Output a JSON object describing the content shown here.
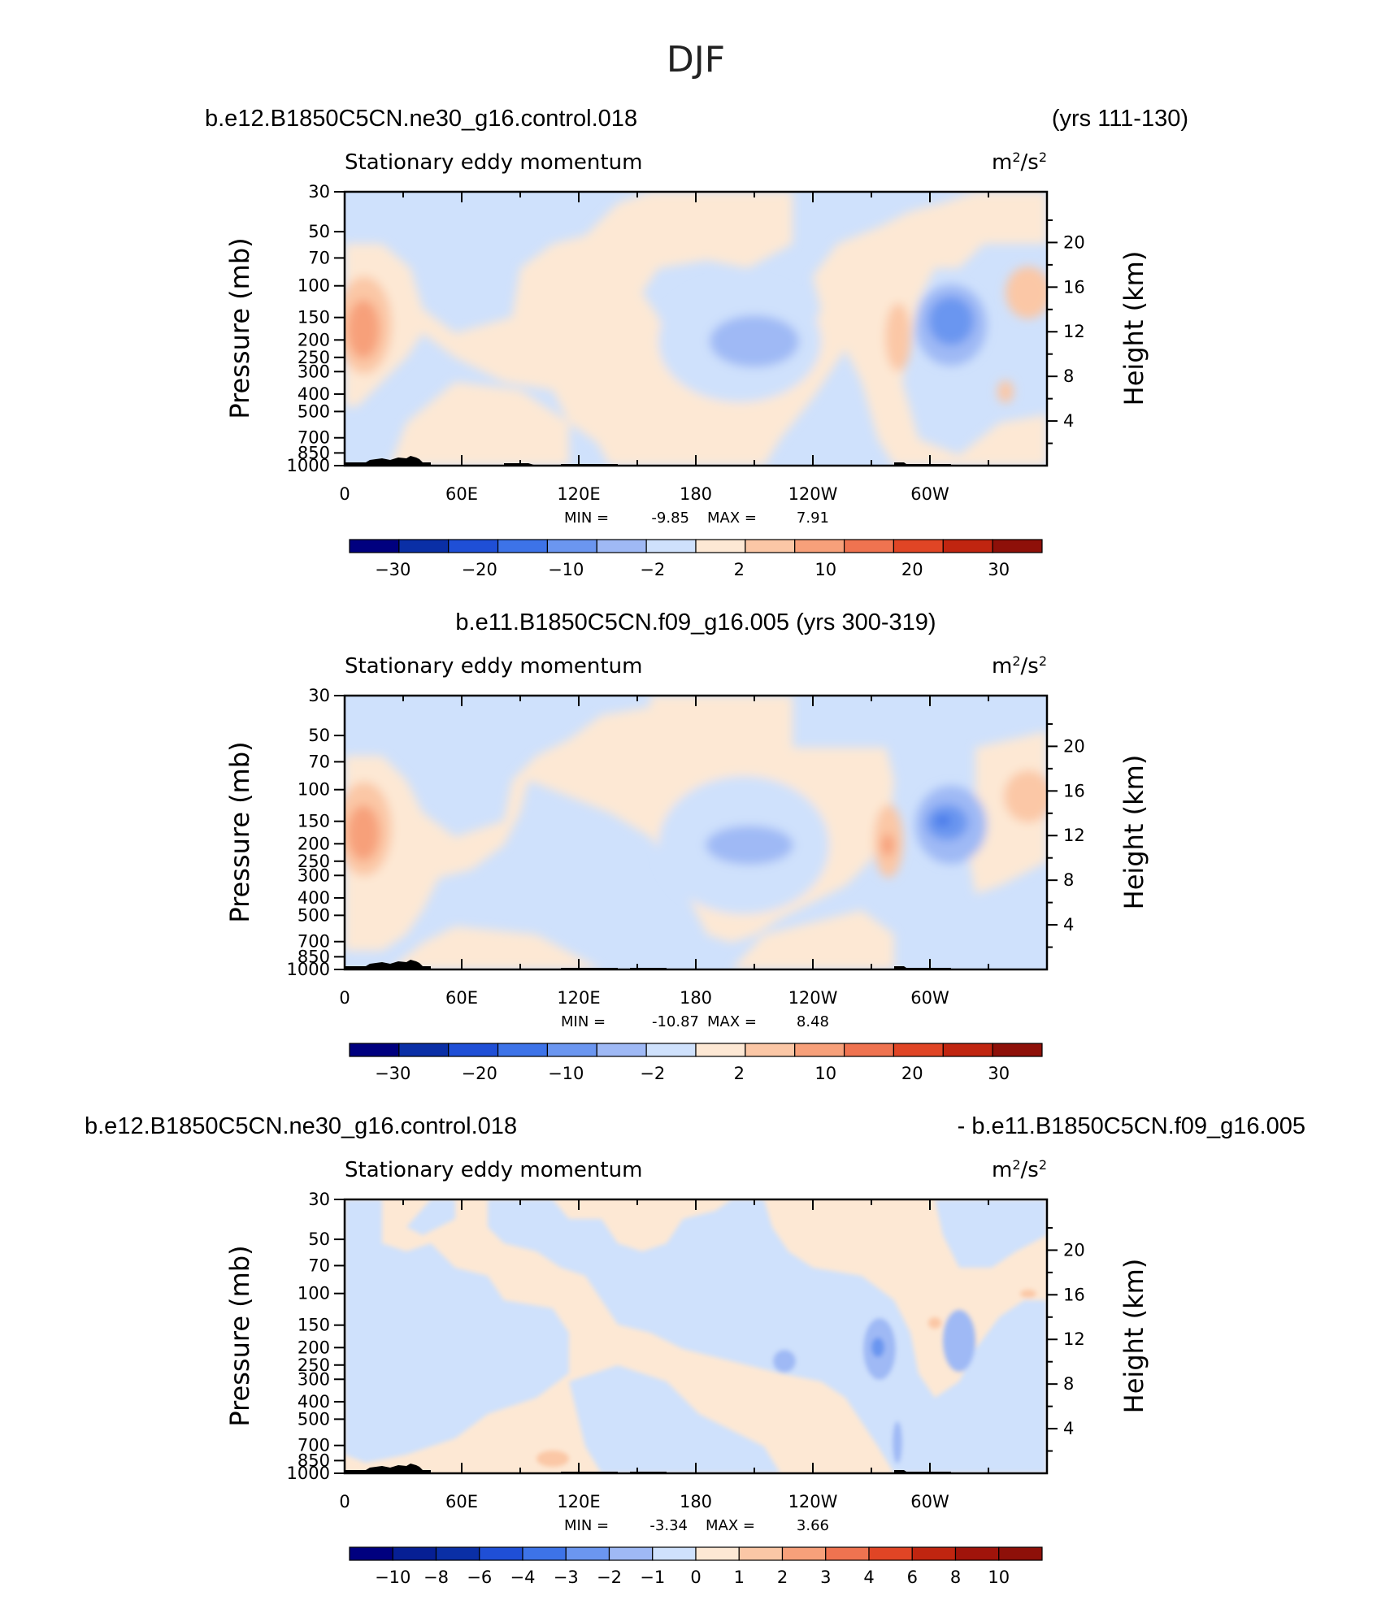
{
  "figure": {
    "title": "DJF"
  },
  "colors": {
    "absolute_scale": [
      "#00007f",
      "#0a2fa6",
      "#1f4fd6",
      "#3d73e8",
      "#6b96f0",
      "#9fb9f5",
      "#cfe1fc",
      "#fde8d4",
      "#fbc7a6",
      "#f7a07a",
      "#ef7350",
      "#e04525",
      "#c02510",
      "#8e1009"
    ],
    "difference_scale": [
      "#00007f",
      "#0a2fa6",
      "#1f4fd6",
      "#3d73e8",
      "#6b96f0",
      "#9fb9f5",
      "#cfe1fc",
      "#fde8d4",
      "#fbc7a6",
      "#f7a07a",
      "#ef7350",
      "#e04525",
      "#c02510",
      "#8e1009"
    ]
  },
  "chart_data": [
    {
      "type": "heatmap",
      "header_left": "b.e12.B1850C5CN.ne30_g16.control.018",
      "header_right": "(yrs 111-130)",
      "title": "Stationary eddy momentum",
      "units": "m²/s²",
      "ylabel_left": "Pressure (mb)",
      "ylabel_right": "Height (km)",
      "x_ticks": [
        "0",
        "60E",
        "120E",
        "180",
        "120W",
        "60W"
      ],
      "y_ticks_left": [
        "30",
        "50",
        "70",
        "100",
        "150",
        "200",
        "250",
        "300",
        "400",
        "500",
        "700",
        "850",
        "1000"
      ],
      "y_ticks_right": [
        "20",
        "16",
        "12",
        "8",
        "4"
      ],
      "min_label": "MIN =",
      "min": "-9.85",
      "max_label": "MAX =",
      "max": "7.91",
      "colorbar_labels": [
        "-30",
        "-20",
        "-10",
        "-2",
        "2",
        "10",
        "20",
        "30"
      ],
      "contour_levels": [
        -30,
        -20,
        -10,
        -2,
        2,
        10,
        20,
        30
      ],
      "features": [
        {
          "lon": 10,
          "p": 190,
          "value": 7.9
        },
        {
          "lon": 200,
          "p": 190,
          "value": -6.0
        },
        {
          "lon": 300,
          "p": 160,
          "value": -9.8
        },
        {
          "lon": 275,
          "p": 190,
          "value": 4.5
        },
        {
          "lon": 350,
          "p": 110,
          "value": 4.0
        },
        {
          "lon": 120,
          "p": 300,
          "value": -1.5
        }
      ]
    },
    {
      "type": "heatmap",
      "header_center": "b.e11.B1850C5CN.f09_g16.005 (yrs 300-319)",
      "title": "Stationary eddy momentum",
      "units": "m²/s²",
      "ylabel_left": "Pressure (mb)",
      "ylabel_right": "Height (km)",
      "x_ticks": [
        "0",
        "60E",
        "120E",
        "180",
        "120W",
        "60W"
      ],
      "y_ticks_left": [
        "30",
        "50",
        "70",
        "100",
        "150",
        "200",
        "250",
        "300",
        "400",
        "500",
        "700",
        "850",
        "1000"
      ],
      "y_ticks_right": [
        "20",
        "16",
        "12",
        "8",
        "4"
      ],
      "min_label": "MIN =",
      "min": "-10.87",
      "max_label": "MAX =",
      "max": "8.48",
      "colorbar_labels": [
        "-30",
        "-20",
        "-10",
        "-2",
        "2",
        "10",
        "20",
        "30"
      ],
      "contour_levels": [
        -30,
        -20,
        -10,
        -2,
        2,
        10,
        20,
        30
      ],
      "features": [
        {
          "lon": 10,
          "p": 190,
          "value": 8.5
        },
        {
          "lon": 195,
          "p": 200,
          "value": -5.5
        },
        {
          "lon": 305,
          "p": 150,
          "value": -10.9
        },
        {
          "lon": 278,
          "p": 200,
          "value": 6.0
        },
        {
          "lon": 350,
          "p": 110,
          "value": 4.0
        }
      ]
    },
    {
      "type": "heatmap",
      "header_left": "b.e12.B1850C5CN.ne30_g16.control.018",
      "header_right": "- b.e11.B1850C5CN.f09_g16.005",
      "title": "Stationary eddy momentum",
      "units": "m²/s²",
      "ylabel_left": "Pressure (mb)",
      "ylabel_right": "Height (km)",
      "x_ticks": [
        "0",
        "60E",
        "120E",
        "180",
        "120W",
        "60W"
      ],
      "y_ticks_left": [
        "30",
        "50",
        "70",
        "100",
        "150",
        "200",
        "250",
        "300",
        "400",
        "500",
        "700",
        "850",
        "1000"
      ],
      "y_ticks_right": [
        "20",
        "16",
        "12",
        "8",
        "4"
      ],
      "min_label": "MIN =",
      "min": "-3.34",
      "max_label": "MAX =",
      "max": "3.66",
      "colorbar_labels": [
        "-10",
        "-8",
        "-6",
        "-4",
        "-3",
        "-2",
        "-1",
        "0",
        "1",
        "2",
        "3",
        "4",
        "6",
        "8",
        "10"
      ],
      "contour_levels": [
        -10,
        -8,
        -6,
        -4,
        -3,
        -2,
        -1,
        0,
        1,
        2,
        3,
        4,
        6,
        8,
        10
      ],
      "features": [
        {
          "lon": 270,
          "p": 200,
          "value": -3.3
        },
        {
          "lon": 310,
          "p": 220,
          "value": -2.5
        },
        {
          "lon": 285,
          "p": 170,
          "value": 1.5
        },
        {
          "lon": 270,
          "p": 650,
          "value": -3.0
        },
        {
          "lon": 350,
          "p": 110,
          "value": 1.5
        }
      ]
    }
  ]
}
